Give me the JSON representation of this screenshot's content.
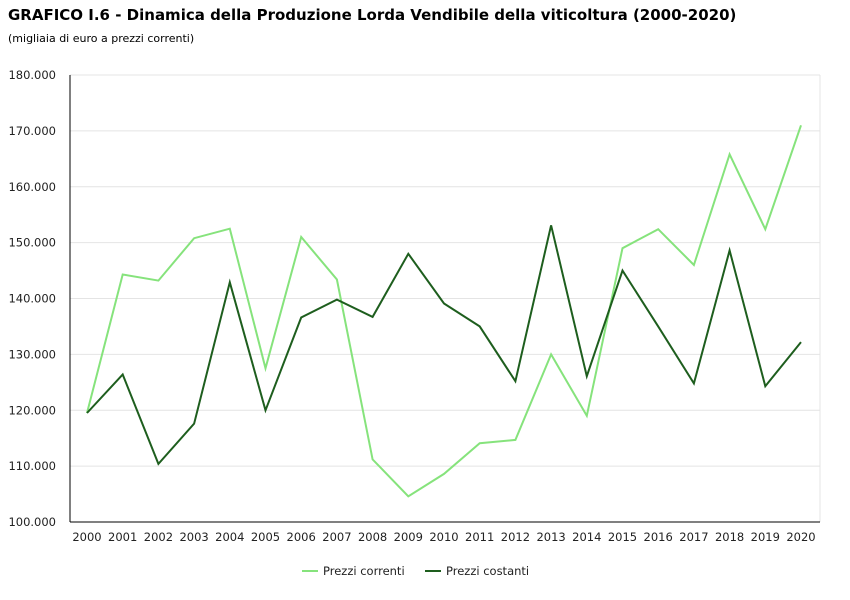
{
  "colors": {
    "correnti": "#86e37c",
    "costanti": "#1e5e1e",
    "grid": "#e4e4e4",
    "axis": "#000000"
  },
  "chart_data": {
    "type": "line",
    "title": "GRAFICO I.6 - Dinamica della Produzione Lorda Vendibile della viticoltura (2000-2020)",
    "subtitle": "(migliaia di euro a prezzi correnti)",
    "categories": [
      "2000",
      "2001",
      "2002",
      "2003",
      "2004",
      "2005",
      "2006",
      "2007",
      "2008",
      "2009",
      "2010",
      "2011",
      "2012",
      "2013",
      "2014",
      "2015",
      "2016",
      "2017",
      "2018",
      "2019",
      "2020"
    ],
    "ylim": [
      100000,
      180000
    ],
    "yticks": [
      100000,
      110000,
      120000,
      130000,
      140000,
      150000,
      160000,
      170000,
      180000
    ],
    "ytick_labels": [
      "100.000",
      "110.000",
      "120.000",
      "130.000",
      "140.000",
      "150.000",
      "160.000",
      "170.000",
      "180.000"
    ],
    "grid": true,
    "legend_position": "bottom",
    "series": [
      {
        "name": "Prezzi correnti",
        "color_key": "correnti",
        "values": [
          119500,
          144300,
          143200,
          150800,
          152500,
          127500,
          151000,
          143400,
          111200,
          104600,
          108600,
          114100,
          114700,
          130000,
          119000,
          149000,
          152400,
          146000,
          165800,
          152400,
          171000
        ]
      },
      {
        "name": "Prezzi costanti",
        "color_key": "costanti",
        "values": [
          119500,
          126400,
          110400,
          117600,
          142900,
          120000,
          136600,
          139800,
          136700,
          148000,
          139100,
          135000,
          125200,
          153100,
          126100,
          145000,
          135000,
          124800,
          148600,
          124300,
          132200
        ]
      }
    ]
  }
}
